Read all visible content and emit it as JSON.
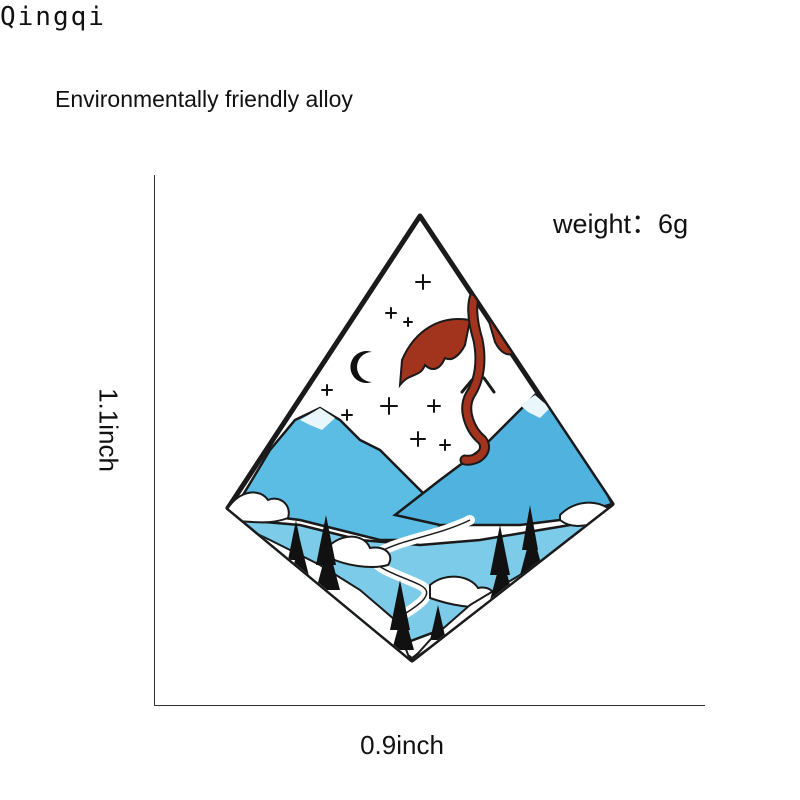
{
  "brand": "Qingqi",
  "subtitle": "Environmentally friendly alloy",
  "weight_label": "weight：6g",
  "width_label": "0.9inch",
  "height_label": "1.1inch",
  "colors": {
    "enamel_white": "#ffffff",
    "sky_blue": "#5bbde4",
    "dragon_red": "#a2341d",
    "outline": "#1a1a1a"
  }
}
